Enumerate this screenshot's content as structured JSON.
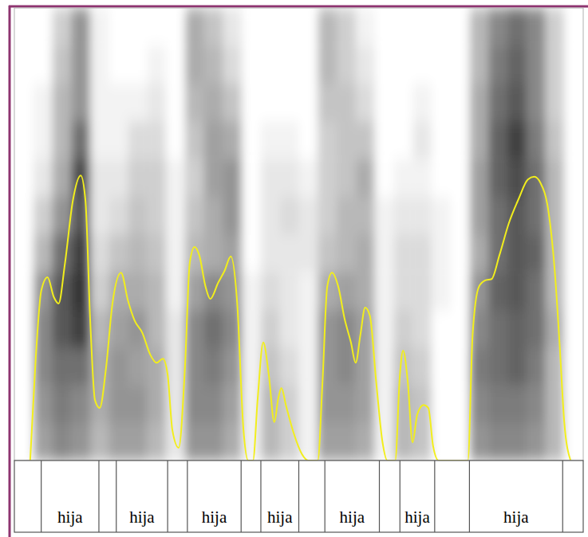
{
  "chart_data": {
    "type": "spectrogram",
    "xlim": [
      0,
      720
    ],
    "ylim": [
      0,
      100
    ],
    "tick_labels": false,
    "spectrogram": {
      "x_bins": [
        0,
        24,
        48,
        72,
        96,
        120,
        144,
        168,
        192,
        216,
        240,
        264,
        288,
        312,
        336,
        360,
        384,
        408,
        432,
        456,
        480,
        504,
        528,
        552,
        576,
        600,
        624,
        648,
        672,
        696,
        720
      ],
      "y_bins": [
        0,
        8.3,
        16.7,
        25,
        33.3,
        41.7,
        50,
        58.3,
        66.7,
        75,
        83.3,
        91.7,
        100
      ],
      "range": [
        0,
        1
      ],
      "cells": [
        [
          0,
          0.4,
          0.5,
          0.45,
          0.3,
          0.4,
          0.4,
          0.3,
          0.1,
          0.45,
          0.45,
          0.35,
          0.05,
          0.3,
          0.2,
          0.05,
          0.4,
          0.4,
          0.35,
          0.05,
          0.3,
          0.25,
          0,
          0,
          0.45,
          0.5,
          0.5,
          0.45,
          0.3,
          0
        ],
        [
          0,
          0.45,
          0.55,
          0.5,
          0.35,
          0.45,
          0.45,
          0.35,
          0.1,
          0.5,
          0.5,
          0.4,
          0.05,
          0.3,
          0.2,
          0.05,
          0.45,
          0.45,
          0.4,
          0.05,
          0.3,
          0.25,
          0,
          0,
          0.5,
          0.55,
          0.55,
          0.5,
          0.3,
          0
        ],
        [
          0,
          0.5,
          0.6,
          0.6,
          0.35,
          0.45,
          0.4,
          0.35,
          0.1,
          0.5,
          0.55,
          0.45,
          0.05,
          0.25,
          0.15,
          0.05,
          0.45,
          0.5,
          0.4,
          0.05,
          0.25,
          0.2,
          0,
          0,
          0.55,
          0.6,
          0.65,
          0.55,
          0.3,
          0
        ],
        [
          0,
          0.5,
          0.7,
          0.8,
          0.3,
          0.4,
          0.45,
          0.3,
          0.1,
          0.5,
          0.6,
          0.5,
          0.05,
          0.2,
          0.1,
          0.05,
          0.45,
          0.5,
          0.4,
          0.05,
          0.2,
          0.15,
          0,
          0,
          0.5,
          0.6,
          0.65,
          0.6,
          0.35,
          0
        ],
        [
          0,
          0.45,
          0.7,
          0.85,
          0.2,
          0.35,
          0.35,
          0.3,
          0.05,
          0.4,
          0.5,
          0.45,
          0.05,
          0.15,
          0.1,
          0.05,
          0.35,
          0.4,
          0.35,
          0.05,
          0.15,
          0.15,
          0.05,
          0,
          0.45,
          0.65,
          0.7,
          0.6,
          0.3,
          0
        ],
        [
          0,
          0.3,
          0.6,
          0.8,
          0.15,
          0.25,
          0.3,
          0.25,
          0.05,
          0.3,
          0.35,
          0.4,
          0,
          0.1,
          0.1,
          0.1,
          0.25,
          0.3,
          0.35,
          0.05,
          0.15,
          0.15,
          0.05,
          0,
          0.35,
          0.6,
          0.7,
          0.65,
          0.3,
          0
        ],
        [
          0,
          0.2,
          0.45,
          0.7,
          0.1,
          0.15,
          0.25,
          0.2,
          0.05,
          0.25,
          0.35,
          0.45,
          0,
          0.1,
          0.15,
          0.1,
          0.2,
          0.3,
          0.3,
          0.05,
          0.1,
          0.1,
          0.05,
          0,
          0.4,
          0.6,
          0.7,
          0.6,
          0.3,
          0
        ],
        [
          0,
          0.1,
          0.35,
          0.75,
          0.1,
          0.1,
          0.2,
          0.2,
          0.05,
          0.2,
          0.4,
          0.45,
          0,
          0.1,
          0.1,
          0.05,
          0.2,
          0.25,
          0.35,
          0,
          0.05,
          0.05,
          0,
          0,
          0.4,
          0.65,
          0.75,
          0.6,
          0.3,
          0
        ],
        [
          0,
          0.05,
          0.3,
          0.6,
          0.05,
          0.05,
          0.15,
          0.15,
          0,
          0.25,
          0.4,
          0.35,
          0,
          0.05,
          0.05,
          0,
          0.2,
          0.25,
          0.25,
          0,
          0,
          0.1,
          0,
          0,
          0.35,
          0.65,
          0.8,
          0.55,
          0.25,
          0
        ],
        [
          0,
          0.05,
          0.3,
          0.45,
          0.05,
          0.05,
          0.05,
          0.1,
          0,
          0.3,
          0.35,
          0.25,
          0,
          0,
          0,
          0,
          0.25,
          0.25,
          0.15,
          0,
          0,
          0.05,
          0,
          0,
          0.35,
          0.6,
          0.7,
          0.5,
          0.2,
          0
        ],
        [
          0,
          0,
          0.25,
          0.45,
          0.05,
          0,
          0,
          0.05,
          0,
          0.35,
          0.3,
          0.15,
          0,
          0,
          0,
          0,
          0.3,
          0.2,
          0.1,
          0,
          0,
          0,
          0,
          0,
          0.3,
          0.55,
          0.65,
          0.5,
          0.2,
          0
        ],
        [
          0,
          0,
          0.2,
          0.45,
          0.05,
          0,
          0,
          0,
          0,
          0.35,
          0.25,
          0.1,
          0,
          0,
          0,
          0,
          0.3,
          0.2,
          0.05,
          0,
          0,
          0,
          0,
          0,
          0.3,
          0.5,
          0.6,
          0.5,
          0.2,
          0
        ]
      ]
    },
    "contour": {
      "type": "line",
      "color": "#f2ee1c",
      "x": [
        20,
        27,
        34,
        42,
        50,
        56,
        64,
        74,
        84,
        90,
        96,
        102,
        108,
        116,
        124,
        135,
        144,
        152,
        162,
        172,
        180,
        188,
        194,
        200,
        208,
        216,
        222,
        228,
        234,
        242,
        248,
        258,
        266,
        274,
        282,
        290,
        296,
        302,
        308,
        315,
        322,
        329,
        334,
        338,
        344,
        354,
        364,
        372,
        384,
        390,
        396,
        402,
        410,
        418,
        426,
        432,
        438,
        444,
        450,
        458,
        466,
        472,
        482,
        488,
        492,
        498,
        504,
        510,
        518,
        524,
        530,
        537,
        574,
        580,
        588,
        596,
        604,
        614,
        626,
        638,
        650,
        658,
        666,
        676,
        684,
        690,
        696,
        704
      ],
      "values": [
        0,
        22.5,
        37.5,
        40.5,
        36.1,
        34.7,
        43.5,
        57.4,
        63.0,
        57.4,
        31.0,
        13.4,
        11.6,
        20.4,
        34.5,
        41.5,
        35.2,
        31.0,
        28.2,
        23.4,
        21.6,
        22.5,
        19.0,
        6.7,
        2.8,
        20.8,
        43.7,
        47.2,
        45.4,
        38.4,
        35.7,
        39.3,
        41.9,
        45.1,
        34.9,
        6.7,
        0,
        0,
        13.7,
        26.1,
        19.0,
        8.5,
        13.7,
        16.0,
        12.0,
        5.8,
        1.4,
        0,
        0,
        17.3,
        38.4,
        41.5,
        38.4,
        31.3,
        26.1,
        21.6,
        27.8,
        33.8,
        32.0,
        17.3,
        4.0,
        0,
        0,
        19.0,
        24.3,
        17.3,
        4.0,
        10.2,
        12.3,
        11.6,
        3.2,
        0,
        0,
        27.8,
        38.4,
        39.8,
        40.1,
        45.4,
        52.5,
        57.7,
        62.1,
        62.7,
        61.3,
        55.1,
        41.9,
        26.1,
        8.5,
        0
      ]
    },
    "tier": {
      "intervals": [
        {
          "start": 34,
          "end": 107,
          "label": "hija"
        },
        {
          "start": 129,
          "end": 194,
          "label": "hija"
        },
        {
          "start": 219,
          "end": 287,
          "label": "hija"
        },
        {
          "start": 312,
          "end": 360,
          "label": "hija"
        },
        {
          "start": 393,
          "end": 462,
          "label": "hija"
        },
        {
          "start": 488,
          "end": 532,
          "label": "hija"
        },
        {
          "start": 576,
          "end": 694,
          "label": "hija"
        }
      ]
    }
  }
}
